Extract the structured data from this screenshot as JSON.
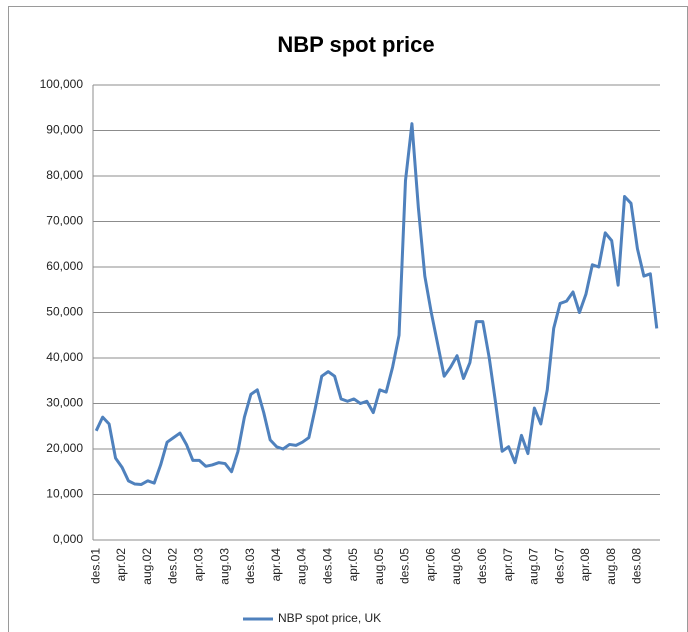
{
  "chart_data": {
    "type": "line",
    "title": "NBP spot price",
    "categories": [
      "des.01",
      null,
      null,
      null,
      "apr.02",
      null,
      null,
      null,
      "aug.02",
      null,
      null,
      null,
      "des.02",
      null,
      null,
      null,
      "apr.03",
      null,
      null,
      null,
      "aug.03",
      null,
      null,
      null,
      "des.03",
      null,
      null,
      null,
      "apr.04",
      null,
      null,
      null,
      "aug.04",
      null,
      null,
      null,
      "des.04",
      null,
      null,
      null,
      "apr.05",
      null,
      null,
      null,
      "aug.05",
      null,
      null,
      null,
      "des.05",
      null,
      null,
      null,
      "apr.06",
      null,
      null,
      null,
      "aug.06",
      null,
      null,
      null,
      "des.06",
      null,
      null,
      null,
      "apr.07",
      null,
      null,
      null,
      "aug.07",
      null,
      null,
      null,
      "des.07",
      null,
      null,
      null,
      "apr.08",
      null,
      null,
      null,
      "aug.08",
      null,
      null,
      null,
      "des.08",
      null,
      null,
      null
    ],
    "series": [
      {
        "name": "NBP spot price, UK",
        "color": "#4f81bd",
        "values": [
          24000,
          27000,
          25500,
          18000,
          16000,
          13000,
          12300,
          12200,
          13000,
          12500,
          16500,
          21500,
          22500,
          23500,
          21000,
          17500,
          17500,
          16200,
          16500,
          17000,
          16800,
          15000,
          19500,
          27000,
          32000,
          33000,
          28000,
          22000,
          20500,
          20000,
          21000,
          20800,
          21500,
          22500,
          29000,
          36000,
          37000,
          36000,
          31000,
          30500,
          31000,
          30000,
          30500,
          28000,
          33000,
          32500,
          38000,
          45000,
          79000,
          91500,
          73000,
          58000,
          50000,
          43000,
          36000,
          38000,
          40500,
          35500,
          39000,
          48000,
          48000,
          40000,
          30000,
          19500,
          20500,
          17000,
          23000,
          19000,
          29000,
          25500,
          33000,
          46500,
          52000,
          52500,
          54500,
          50000,
          54000,
          60500,
          60000,
          67500,
          65800,
          56000,
          75500,
          74000,
          64000,
          58000,
          58500,
          46500
        ]
      }
    ],
    "ylim": [
      0,
      100000
    ],
    "yticks": [
      {
        "value": 0,
        "label": "0,000"
      },
      {
        "value": 10000,
        "label": "10,000"
      },
      {
        "value": 20000,
        "label": "20,000"
      },
      {
        "value": 30000,
        "label": "30,000"
      },
      {
        "value": 40000,
        "label": "40,000"
      },
      {
        "value": 50000,
        "label": "50,000"
      },
      {
        "value": 60000,
        "label": "60,000"
      },
      {
        "value": 70000,
        "label": "70,000"
      },
      {
        "value": 80000,
        "label": "80,000"
      },
      {
        "value": 90000,
        "label": "90,000"
      },
      {
        "value": 100000,
        "label": "100,000"
      }
    ],
    "grid": true,
    "legend": "bottom"
  }
}
